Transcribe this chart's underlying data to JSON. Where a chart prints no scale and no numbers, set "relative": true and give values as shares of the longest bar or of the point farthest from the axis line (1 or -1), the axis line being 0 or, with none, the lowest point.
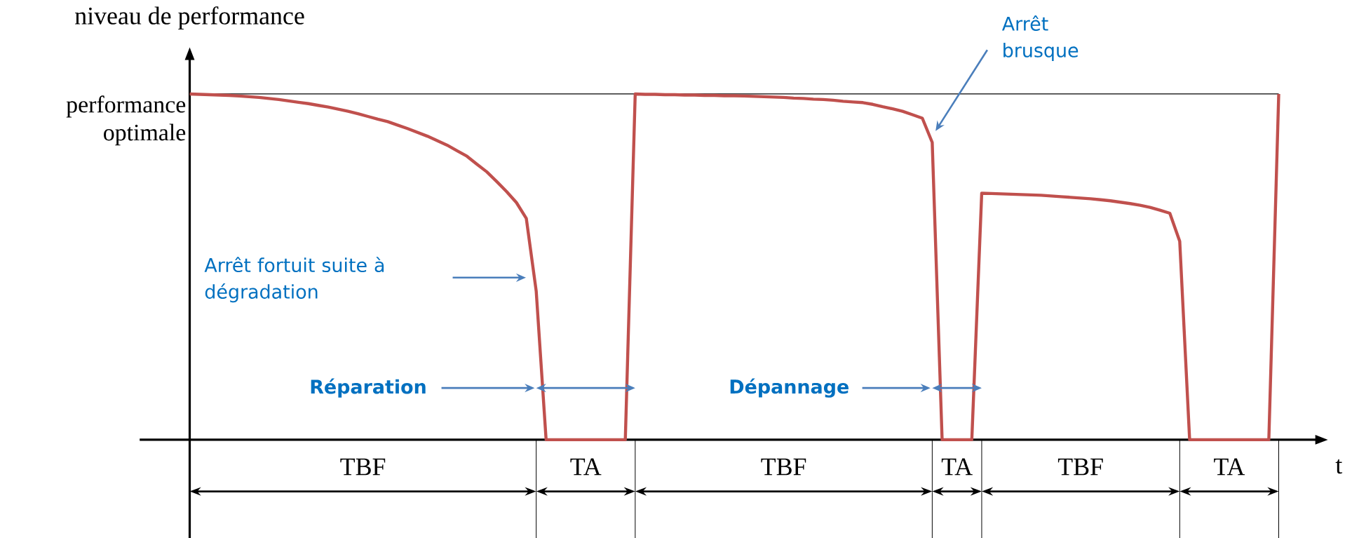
{
  "chart_data": {
    "type": "line",
    "relative": true,
    "xlabel": "t",
    "ylabel": "niveau de performance",
    "categories": [
      null,
      null,
      null,
      null,
      null,
      null,
      null,
      null,
      null,
      null,
      null,
      null,
      null,
      null,
      null,
      null,
      null,
      null,
      null,
      null,
      null,
      null,
      null,
      null,
      null,
      null,
      null,
      null,
      null,
      null,
      null,
      null,
      null,
      null,
      null,
      null,
      null,
      null,
      null,
      null,
      null,
      null,
      null,
      null,
      null,
      null,
      null,
      null,
      null,
      null,
      null,
      null,
      null,
      null,
      null,
      null,
      null,
      null,
      null,
      null,
      null,
      null,
      null,
      null,
      null,
      null,
      null,
      null,
      null,
      null,
      null,
      null,
      null,
      null,
      null,
      null,
      null,
      null,
      null,
      null,
      null,
      null,
      null,
      null,
      null,
      null,
      null,
      null,
      null,
      null,
      null,
      null,
      null,
      null,
      null,
      null,
      null,
      null,
      null,
      null,
      null,
      null,
      null,
      null,
      null,
      null,
      null,
      null,
      null,
      null,
      null
    ],
    "series": [
      {
        "color": "#c0504d",
        "values": [
          1,
          0.999,
          0.998,
          0.997,
          0.996,
          0.994,
          0.992,
          0.99,
          0.987,
          0.984,
          0.98,
          0.976,
          0.972,
          0.967,
          0.962,
          0.956,
          0.95,
          0.943,
          0.935,
          0.927,
          0.92,
          0.91,
          0.9,
          0.889,
          0.878,
          0.865,
          0.852,
          0.836,
          0.82,
          0.797,
          0.775,
          0.747,
          0.718,
          0.686,
          0.64,
          0.43,
          0,
          0,
          0,
          0,
          0,
          0,
          0,
          0,
          0,
          1,
          0.999,
          0.999,
          0.998,
          0.998,
          0.997,
          0.997,
          0.996,
          0.996,
          0.995,
          0.995,
          0.994,
          0.993,
          0.992,
          0.991,
          0.99,
          0.988,
          0.987,
          0.985,
          0.984,
          0.982,
          0.979,
          0.977,
          0.975,
          0.97,
          0.963,
          0.957,
          0.95,
          0.94,
          0.93,
          0.86,
          0,
          0,
          0,
          0,
          0.713,
          0.712,
          0.711,
          0.71,
          0.709,
          0.708,
          0.707,
          0.705,
          0.703,
          0.701,
          0.699,
          0.697,
          0.694,
          0.691,
          0.687,
          0.683,
          0.678,
          0.672,
          0.664,
          0.655,
          0.574,
          0,
          0,
          0,
          0,
          0,
          0,
          0,
          0,
          0,
          1
        ]
      }
    ],
    "ref_lines": [
      {
        "axis": "y",
        "value": 1,
        "label": "performance optimale",
        "color": "#000000"
      }
    ],
    "annotations": [
      "Arrêt fortuit suite à dégradation",
      "Arrêt brusque",
      "Réparation",
      "Dépannage",
      "TBF",
      "TA",
      "TBF",
      "TA",
      "TBF",
      "TA"
    ]
  }
}
